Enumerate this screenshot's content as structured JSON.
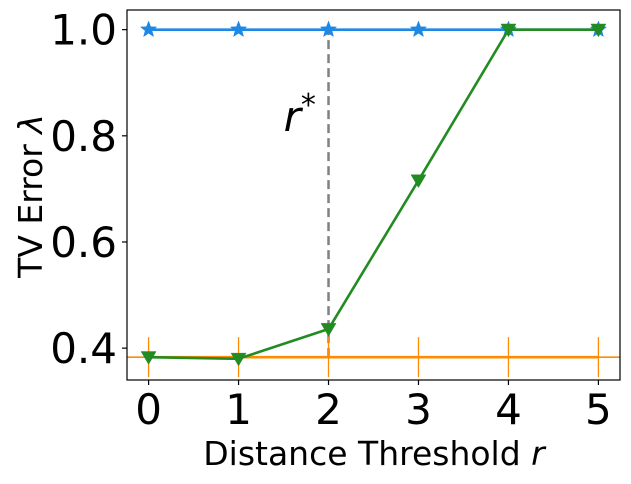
{
  "chart_data": {
    "type": "line",
    "title": "",
    "xlabel": "Distance Threshold r",
    "ylabel": "TV Error λ",
    "xlim": [
      -0.24,
      5.24
    ],
    "ylim": [
      0.34,
      1.037
    ],
    "x_ticks": [
      0,
      1,
      2,
      3,
      4,
      5
    ],
    "x_tick_labels": [
      "0",
      "1",
      "2",
      "3",
      "4",
      "5"
    ],
    "y_ticks": [
      0.4,
      0.6,
      0.8,
      1.0
    ],
    "y_tick_labels": [
      "0.4",
      "0.6",
      "0.8",
      "1.0"
    ],
    "grid": false,
    "legend": "none",
    "x": [
      0,
      1,
      2,
      3,
      4,
      5
    ],
    "series": [
      {
        "key": "blue",
        "color": "#1E88E5",
        "marker": "star",
        "values": [
          1.0,
          1.0,
          1.0,
          1.0,
          1.0,
          1.0
        ]
      },
      {
        "key": "green",
        "color": "#228B22",
        "marker": "triangle-down",
        "values": [
          0.383,
          0.38,
          0.436,
          0.716,
          1.0,
          1.0
        ]
      },
      {
        "key": "orange",
        "color": "#FF8C00",
        "marker": "vline",
        "values": [
          0.383,
          0.383,
          0.383,
          0.383,
          0.383,
          0.383
        ]
      }
    ],
    "reference_lines": {
      "horizontal_y": 0.383,
      "vertical_x": 2,
      "vertical_y_range": [
        0.383,
        1.0
      ],
      "vertical_color": "#808080"
    },
    "annotation": {
      "text": "r",
      "superscript": "*",
      "x": 1.68,
      "y": 0.82
    }
  }
}
